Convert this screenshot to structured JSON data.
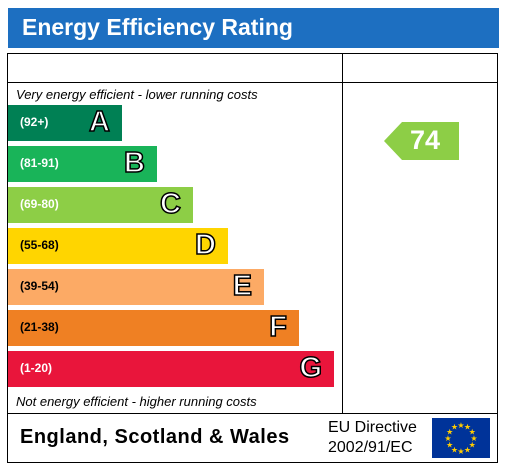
{
  "header": {
    "title": "Energy Efficiency Rating"
  },
  "notes": {
    "top": "Very energy efficient - lower running costs",
    "bottom": "Not energy efficient - higher running costs"
  },
  "colors": {
    "title_bg": "#1d6fc1",
    "A": "#008054",
    "B": "#19b459",
    "C": "#8dce46",
    "D": "#ffd500",
    "E": "#fcaa65",
    "F": "#ef8023",
    "G": "#e9153b"
  },
  "chart_data": {
    "type": "bar",
    "categories": [
      "A",
      "B",
      "C",
      "D",
      "E",
      "F",
      "G"
    ],
    "ranges": [
      "(92+)",
      "(81-91)",
      "(69-80)",
      "(55-68)",
      "(39-54)",
      "(21-38)",
      "(1-20)"
    ],
    "current_rating": {
      "value": "74",
      "band": "C"
    }
  },
  "footer": {
    "region": "England, Scotland & Wales",
    "directive_line1": "EU Directive",
    "directive_line2": "2002/91/EC",
    "flag_icon": "eu-flag-icon"
  }
}
